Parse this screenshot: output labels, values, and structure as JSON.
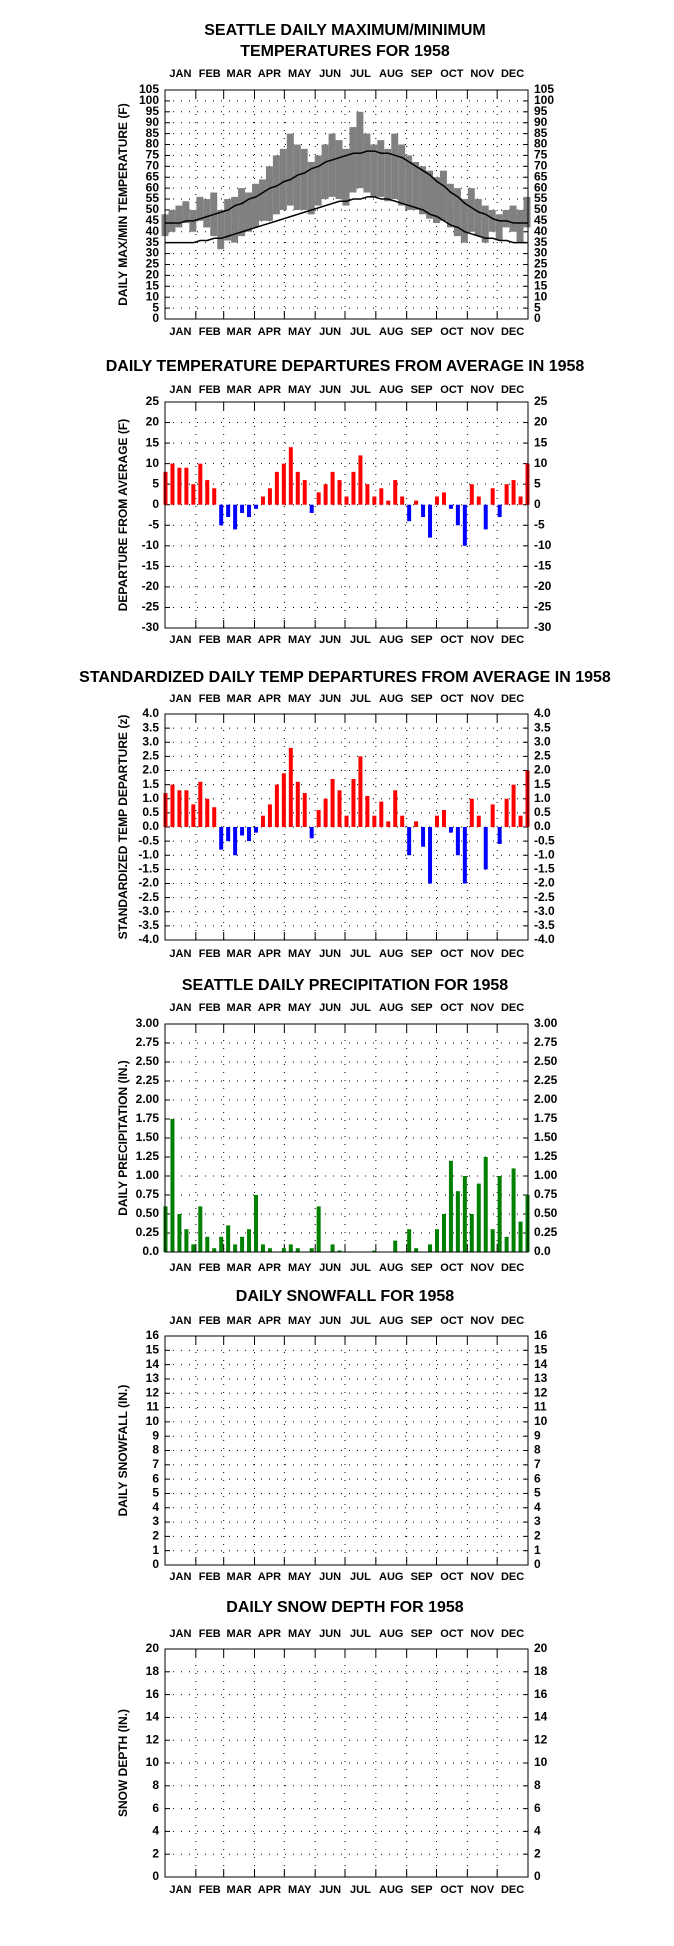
{
  "chart_data": [
    {
      "type": "minmax",
      "title": [
        "SEATTLE DAILY MAXIMUM/MINIMUM",
        "TEMPERATURES FOR 1958"
      ],
      "ylabel": "DAILY MAX/MIN TEMPERATURE (F)",
      "months": [
        "JAN",
        "FEB",
        "MAR",
        "APR",
        "MAY",
        "JUN",
        "JUL",
        "AUG",
        "SEP",
        "OCT",
        "NOV",
        "DEC"
      ],
      "x": [
        1,
        8,
        15,
        22,
        29,
        36,
        43,
        50,
        57,
        64,
        71,
        78,
        85,
        92,
        99,
        106,
        113,
        120,
        127,
        134,
        141,
        148,
        155,
        162,
        169,
        176,
        183,
        190,
        197,
        204,
        211,
        218,
        225,
        232,
        239,
        246,
        253,
        260,
        267,
        274,
        281,
        288,
        295,
        302,
        309,
        316,
        323,
        330,
        337,
        344,
        351,
        358,
        365
      ],
      "xlim": [
        1,
        365
      ],
      "ylim": [
        0,
        105
      ],
      "yticks": [
        0,
        5,
        10,
        15,
        20,
        25,
        30,
        35,
        40,
        45,
        50,
        55,
        60,
        65,
        70,
        75,
        80,
        85,
        90,
        95,
        100,
        105
      ],
      "grid": true,
      "bar_color": "#808080",
      "line_color": "#000000",
      "max": [
        48,
        50,
        52,
        54,
        50,
        56,
        55,
        58,
        50,
        55,
        56,
        60,
        58,
        62,
        64,
        70,
        75,
        78,
        85,
        80,
        78,
        72,
        75,
        80,
        85,
        82,
        78,
        88,
        95,
        85,
        80,
        82,
        78,
        85,
        80,
        75,
        72,
        70,
        68,
        65,
        68,
        62,
        60,
        55,
        60,
        55,
        52,
        50,
        48,
        50,
        52,
        50,
        56
      ],
      "min": [
        38,
        40,
        42,
        44,
        40,
        45,
        42,
        38,
        32,
        36,
        35,
        38,
        40,
        42,
        45,
        45,
        48,
        50,
        52,
        50,
        50,
        48,
        52,
        55,
        56,
        55,
        52,
        58,
        60,
        58,
        56,
        56,
        54,
        55,
        52,
        50,
        50,
        48,
        46,
        44,
        45,
        42,
        38,
        35,
        40,
        38,
        35,
        40,
        36,
        42,
        40,
        35,
        42
      ],
      "normal_max": [
        44,
        44,
        44,
        45,
        45,
        46,
        47,
        48,
        49,
        50,
        52,
        53,
        55,
        56,
        58,
        60,
        61,
        63,
        64,
        66,
        67,
        69,
        70,
        72,
        73,
        74,
        75,
        76,
        76,
        77,
        77,
        76,
        76,
        75,
        74,
        72,
        70,
        68,
        66,
        63,
        61,
        58,
        56,
        53,
        51,
        49,
        48,
        46,
        45,
        45,
        44,
        44,
        44
      ],
      "normal_min": [
        35,
        35,
        35,
        35,
        35,
        36,
        36,
        37,
        37,
        38,
        39,
        40,
        41,
        42,
        43,
        44,
        45,
        46,
        47,
        48,
        49,
        50,
        51,
        52,
        53,
        54,
        54,
        55,
        55,
        56,
        56,
        55,
        55,
        54,
        53,
        52,
        51,
        50,
        48,
        47,
        45,
        43,
        42,
        40,
        39,
        38,
        37,
        37,
        36,
        36,
        35,
        35,
        35
      ]
    },
    {
      "type": "bar",
      "title": "DAILY TEMPERATURE DEPARTURES FROM AVERAGE IN 1958",
      "ylabel": "DEPARTURE FROM AVERAGE (F)",
      "months": [
        "JAN",
        "FEB",
        "MAR",
        "APR",
        "MAY",
        "JUN",
        "JUL",
        "AUG",
        "SEP",
        "OCT",
        "NOV",
        "DEC"
      ],
      "x": [
        1,
        8,
        15,
        22,
        29,
        36,
        43,
        50,
        57,
        64,
        71,
        78,
        85,
        92,
        99,
        106,
        113,
        120,
        127,
        134,
        141,
        148,
        155,
        162,
        169,
        176,
        183,
        190,
        197,
        204,
        211,
        218,
        225,
        232,
        239,
        246,
        253,
        260,
        267,
        274,
        281,
        288,
        295,
        302,
        309,
        316,
        323,
        330,
        337,
        344,
        351,
        358,
        365
      ],
      "xlim": [
        1,
        365
      ],
      "ylim": [
        -30,
        25
      ],
      "yticks": [
        -30,
        -25,
        -20,
        -15,
        -10,
        -5,
        0,
        5,
        10,
        15,
        20,
        25
      ],
      "grid": true,
      "positive_color": "#ff0000",
      "negative_color": "#0000ff",
      "values": [
        8,
        10,
        9,
        9,
        5,
        10,
        6,
        4,
        -5,
        -3,
        -6,
        -2,
        -3,
        -1,
        2,
        4,
        8,
        10,
        14,
        8,
        6,
        -2,
        3,
        5,
        8,
        6,
        2,
        8,
        12,
        5,
        2,
        4,
        1,
        6,
        2,
        -4,
        1,
        -3,
        -8,
        2,
        3,
        -1,
        -5,
        -10,
        5,
        2,
        -6,
        4,
        -3,
        5,
        6,
        2,
        10
      ]
    },
    {
      "type": "bar",
      "title": "STANDARDIZED DAILY TEMP DEPARTURES FROM AVERAGE IN 1958",
      "ylabel": "STANDARDIZED TEMP DEPARTURE (z)",
      "months": [
        "JAN",
        "FEB",
        "MAR",
        "APR",
        "MAY",
        "JUN",
        "JUL",
        "AUG",
        "SEP",
        "OCT",
        "NOV",
        "DEC"
      ],
      "x": [
        1,
        8,
        15,
        22,
        29,
        36,
        43,
        50,
        57,
        64,
        71,
        78,
        85,
        92,
        99,
        106,
        113,
        120,
        127,
        134,
        141,
        148,
        155,
        162,
        169,
        176,
        183,
        190,
        197,
        204,
        211,
        218,
        225,
        232,
        239,
        246,
        253,
        260,
        267,
        274,
        281,
        288,
        295,
        302,
        309,
        316,
        323,
        330,
        337,
        344,
        351,
        358,
        365
      ],
      "xlim": [
        1,
        365
      ],
      "ylim": [
        -4,
        4
      ],
      "yticks": [
        {
          "value": -4,
          "label": "-4.0"
        },
        -3.5,
        {
          "value": -3,
          "label": "-3.0"
        },
        -2.5,
        {
          "value": -2,
          "label": "-2.0"
        },
        -1.5,
        {
          "value": -1,
          "label": "-1.0"
        },
        -0.5,
        {
          "value": 0,
          "label": "0.0"
        },
        0.5,
        {
          "value": 1,
          "label": "1.0"
        },
        1.5,
        {
          "value": 2,
          "label": "2.0"
        },
        2.5,
        {
          "value": 3,
          "label": "3.0"
        },
        3.5,
        {
          "value": 4,
          "label": "4.0"
        }
      ],
      "grid": true,
      "positive_color": "#ff0000",
      "negative_color": "#0000ff",
      "values": [
        1.2,
        1.5,
        1.3,
        1.3,
        0.8,
        1.6,
        1.0,
        0.7,
        -0.8,
        -0.5,
        -1.0,
        -0.3,
        -0.5,
        -0.2,
        0.4,
        0.8,
        1.5,
        1.9,
        2.8,
        1.6,
        1.2,
        -0.4,
        0.6,
        1.0,
        1.7,
        1.3,
        0.4,
        1.7,
        2.5,
        1.1,
        0.4,
        0.9,
        0.2,
        1.3,
        0.4,
        -1.0,
        0.2,
        -0.7,
        -2.0,
        0.4,
        0.6,
        -0.2,
        -1.0,
        -2.0,
        1.0,
        0.4,
        -1.5,
        0.8,
        -0.6,
        1.0,
        1.5,
        0.4,
        2.0
      ]
    },
    {
      "type": "bar",
      "title": "SEATTLE DAILY PRECIPITATION FOR 1958",
      "ylabel": "DAILY PRECIPITATION (IN.)",
      "months": [
        "JAN",
        "FEB",
        "MAR",
        "APR",
        "MAY",
        "JUN",
        "JUL",
        "AUG",
        "SEP",
        "OCT",
        "NOV",
        "DEC"
      ],
      "x": [
        1,
        8,
        15,
        22,
        29,
        36,
        43,
        50,
        57,
        64,
        71,
        78,
        85,
        92,
        99,
        106,
        113,
        120,
        127,
        134,
        141,
        148,
        155,
        162,
        169,
        176,
        183,
        190,
        197,
        204,
        211,
        218,
        225,
        232,
        239,
        246,
        253,
        260,
        267,
        274,
        281,
        288,
        295,
        302,
        309,
        316,
        323,
        330,
        337,
        344,
        351,
        358,
        365
      ],
      "xlim": [
        1,
        365
      ],
      "ylim": [
        0,
        3
      ],
      "yticks": [
        {
          "value": 0,
          "label": "0.0"
        },
        0.25,
        {
          "value": 0.5,
          "label": "0.50"
        },
        0.75,
        {
          "value": 1,
          "label": "1.00"
        },
        1.25,
        {
          "value": 1.5,
          "label": "1.50"
        },
        1.75,
        {
          "value": 2,
          "label": "2.00"
        },
        2.25,
        {
          "value": 2.5,
          "label": "2.50"
        },
        2.75,
        {
          "value": 3,
          "label": "3.00"
        }
      ],
      "grid": true,
      "color": "#008000",
      "values": [
        0.6,
        1.75,
        0.5,
        0.3,
        0.1,
        0.6,
        0.2,
        0.05,
        0.2,
        0.35,
        0.1,
        0.2,
        0.3,
        0.75,
        0.1,
        0.05,
        0,
        0.05,
        0.1,
        0.05,
        0,
        0.05,
        0.6,
        0,
        0.1,
        0.02,
        0,
        0,
        0,
        0,
        0.02,
        0,
        0,
        0.15,
        0,
        0.3,
        0.05,
        0,
        0.1,
        0.3,
        0.5,
        1.2,
        0.8,
        1.0,
        0.5,
        0.9,
        1.25,
        0.3,
        1.0,
        0.2,
        1.1,
        0.4,
        0.75
      ]
    },
    {
      "type": "bar",
      "title": "DAILY SNOWFALL FOR 1958",
      "ylabel": "DAILY SNOWFALL (IN.)",
      "months": [
        "JAN",
        "FEB",
        "MAR",
        "APR",
        "MAY",
        "JUN",
        "JUL",
        "AUG",
        "SEP",
        "OCT",
        "NOV",
        "DEC"
      ],
      "x": [
        1,
        8,
        15,
        22,
        29,
        36,
        43,
        50,
        57,
        64,
        71,
        78,
        85,
        92,
        99,
        106,
        113,
        120,
        127,
        134,
        141,
        148,
        155,
        162,
        169,
        176,
        183,
        190,
        197,
        204,
        211,
        218,
        225,
        232,
        239,
        246,
        253,
        260,
        267,
        274,
        281,
        288,
        295,
        302,
        309,
        316,
        323,
        330,
        337,
        344,
        351,
        358,
        365
      ],
      "xlim": [
        1,
        365
      ],
      "ylim": [
        0,
        16
      ],
      "yticks": [
        0,
        1,
        2,
        3,
        4,
        5,
        6,
        7,
        8,
        9,
        10,
        11,
        12,
        13,
        14,
        15,
        16
      ],
      "grid": true,
      "color": "#00bfff",
      "values": [
        0,
        0,
        0,
        0,
        0,
        0,
        0,
        0,
        0,
        0,
        0,
        0,
        0,
        0,
        0,
        0,
        0,
        0,
        0,
        0,
        0,
        0,
        0,
        0,
        0,
        0,
        0,
        0,
        0,
        0,
        0,
        0,
        0,
        0,
        0,
        0,
        0,
        0,
        0,
        0,
        0,
        0,
        0,
        0,
        0,
        0,
        0,
        0,
        0,
        0,
        0,
        0,
        0
      ]
    },
    {
      "type": "bar",
      "title": "DAILY SNOW DEPTH FOR 1958",
      "ylabel": "SNOW DEPTH (IN.)",
      "months": [
        "JAN",
        "FEB",
        "MAR",
        "APR",
        "MAY",
        "JUN",
        "JUL",
        "AUG",
        "SEP",
        "OCT",
        "NOV",
        "DEC"
      ],
      "x": [
        1,
        8,
        15,
        22,
        29,
        36,
        43,
        50,
        57,
        64,
        71,
        78,
        85,
        92,
        99,
        106,
        113,
        120,
        127,
        134,
        141,
        148,
        155,
        162,
        169,
        176,
        183,
        190,
        197,
        204,
        211,
        218,
        225,
        232,
        239,
        246,
        253,
        260,
        267,
        274,
        281,
        288,
        295,
        302,
        309,
        316,
        323,
        330,
        337,
        344,
        351,
        358,
        365
      ],
      "xlim": [
        1,
        365
      ],
      "ylim": [
        0,
        20
      ],
      "yticks": [
        0,
        2,
        4,
        6,
        8,
        10,
        12,
        14,
        16,
        18,
        20
      ],
      "grid": true,
      "color": "#00bfff",
      "values": [
        0,
        0,
        0,
        0,
        0,
        0,
        0,
        0,
        0,
        0,
        0,
        0,
        0,
        0,
        0,
        0,
        0,
        0,
        0,
        0,
        0,
        0,
        0,
        0,
        0,
        0,
        0,
        0,
        0,
        0,
        0,
        0,
        0,
        0,
        0,
        0,
        0,
        0,
        0,
        0,
        0,
        0,
        0,
        0,
        0,
        0,
        0,
        0,
        0,
        0,
        0,
        0,
        0
      ]
    }
  ]
}
